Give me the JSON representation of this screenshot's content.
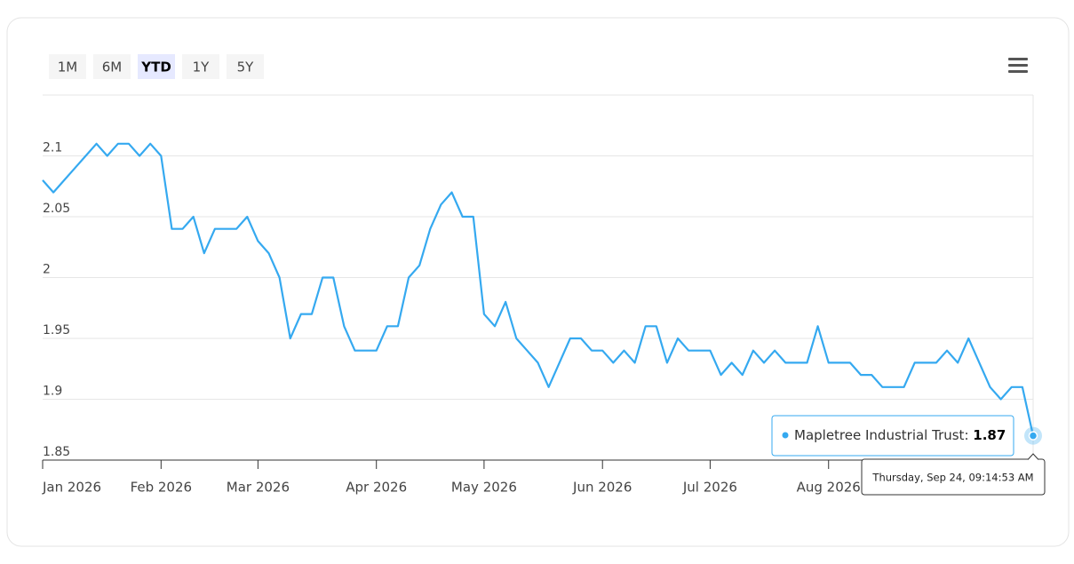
{
  "range_selector": {
    "buttons": [
      "1M",
      "6M",
      "YTD",
      "1Y",
      "5Y"
    ],
    "selected": 2
  },
  "chart_data": {
    "type": "line",
    "categories": [
      "Jan 2026",
      null,
      null,
      null,
      null,
      null,
      null,
      null,
      null,
      null,
      null,
      "Feb 2026",
      null,
      null,
      null,
      null,
      null,
      null,
      null,
      null,
      "Mar 2026",
      null,
      null,
      null,
      null,
      null,
      null,
      null,
      null,
      null,
      null,
      "Apr 2026",
      null,
      null,
      null,
      null,
      null,
      null,
      null,
      null,
      null,
      "May 2026",
      null,
      null,
      null,
      null,
      null,
      null,
      null,
      null,
      null,
      null,
      "Jun 2026",
      null,
      null,
      null,
      null,
      null,
      null,
      null,
      null,
      null,
      "Jul 2026",
      null,
      null,
      null,
      null,
      null,
      null,
      null,
      null,
      null,
      null,
      "Aug 2026",
      null,
      null,
      null,
      null,
      null,
      null,
      null,
      null,
      null,
      null,
      null,
      null,
      null,
      null,
      null,
      null,
      null,
      null,
      null
    ],
    "series": [
      {
        "name": "Mapletree Industrial Trust",
        "color": "#35a9f0",
        "values": [
          2.08,
          2.07,
          2.08,
          2.09,
          2.1,
          2.11,
          2.1,
          2.11,
          2.11,
          2.1,
          2.11,
          2.1,
          2.04,
          2.04,
          2.05,
          2.02,
          2.04,
          2.04,
          2.04,
          2.05,
          2.03,
          2.02,
          2.0,
          1.95,
          1.97,
          1.97,
          2.0,
          2.0,
          1.96,
          1.94,
          1.94,
          1.94,
          1.96,
          1.96,
          2.0,
          2.01,
          2.04,
          2.06,
          2.07,
          2.05,
          2.05,
          1.97,
          1.96,
          1.98,
          1.95,
          1.94,
          1.93,
          1.91,
          1.93,
          1.95,
          1.95,
          1.94,
          1.94,
          1.93,
          1.94,
          1.93,
          1.96,
          1.96,
          1.93,
          1.95,
          1.94,
          1.94,
          1.94,
          1.92,
          1.93,
          1.92,
          1.94,
          1.93,
          1.94,
          1.93,
          1.93,
          1.93,
          1.96,
          1.93,
          1.93,
          1.93,
          1.92,
          1.92,
          1.91,
          1.91,
          1.91,
          1.93,
          1.93,
          1.93,
          1.94,
          1.93,
          1.95,
          1.93,
          1.91,
          1.9,
          1.91,
          1.91,
          1.87
        ]
      }
    ],
    "ylim": [
      1.85,
      2.15
    ],
    "yticks": [
      1.85,
      1.9,
      1.95,
      2,
      2.05,
      2.1
    ],
    "grid": true,
    "tooltip": {
      "date": "Thursday, Sep 24, 09:14:53 AM"
    }
  }
}
